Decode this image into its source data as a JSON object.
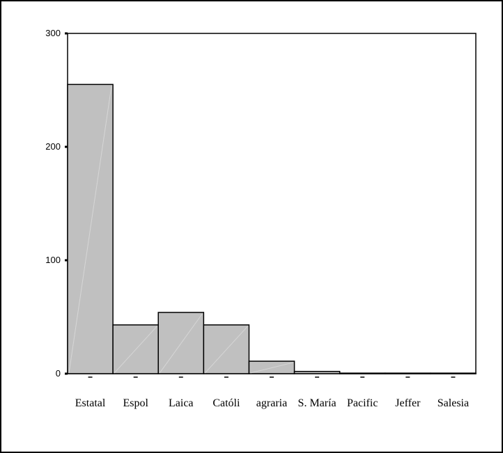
{
  "chart_data": {
    "type": "bar",
    "title": "",
    "xlabel": "",
    "ylabel": "",
    "categories": [
      "Estatal",
      "Espol",
      "Laica",
      "Católi",
      "agraria",
      "S. María",
      "Pacific",
      "Jeffer",
      "Salesia"
    ],
    "values": [
      255,
      43,
      54,
      43,
      11,
      2,
      0.5,
      0.5,
      0.5
    ],
    "ylim": [
      0,
      300
    ],
    "yticks": [
      "0",
      "100",
      "200",
      "300"
    ],
    "grid": false,
    "legend": "none",
    "colors": {
      "bar_fill": "#c0c0c0",
      "bar_stroke": "#000000",
      "axis": "#000000"
    }
  }
}
